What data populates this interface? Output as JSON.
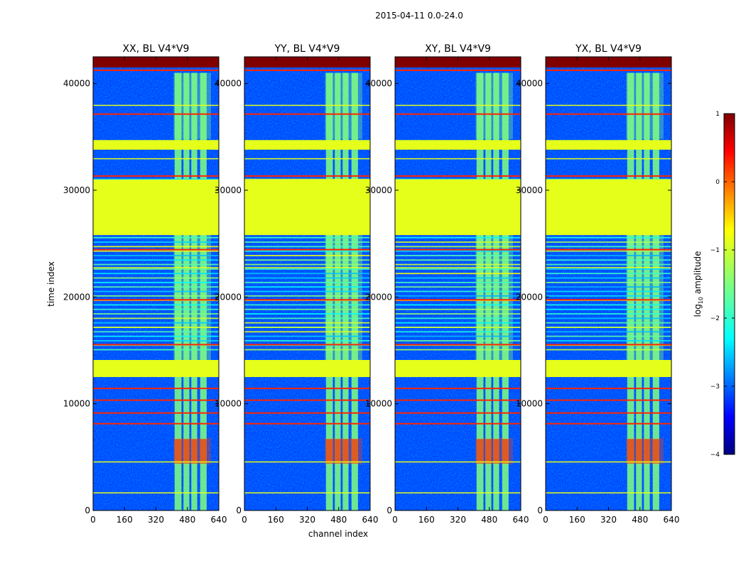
{
  "figure_title": "2015-04-11 0.0-24.0",
  "chart_data": {
    "type": "heatmap",
    "suptitle": "2015-04-11 0.0-24.0",
    "xlabel": "channel index",
    "ylabel": "time index",
    "xlim": [
      0,
      640
    ],
    "ylim": [
      0,
      42500
    ],
    "x_ticks": [
      0,
      160,
      320,
      480,
      640
    ],
    "y_ticks": [
      0,
      10000,
      20000,
      30000,
      40000
    ],
    "panels": [
      {
        "title": "XX, BL V4*V9",
        "polarization": "XX"
      },
      {
        "title": "YY, BL V4*V9",
        "polarization": "YY"
      },
      {
        "title": "XY, BL V4*V9",
        "polarization": "XY"
      },
      {
        "title": "YX, BL V4*V9",
        "polarization": "YX"
      }
    ],
    "signal_band_channels": [
      410,
      600
    ],
    "signal_sub_bands": [
      [
        415,
        450
      ],
      [
        460,
        490
      ],
      [
        500,
        530
      ],
      [
        545,
        578
      ]
    ],
    "flagged_time_bands": [
      {
        "start": 33800,
        "end": 34700,
        "log_amp": -1.0
      },
      {
        "start": 25800,
        "end": 31000,
        "log_amp": -1.0
      },
      {
        "start": 12500,
        "end": 14100,
        "log_amp": -1.0
      },
      {
        "start": 41500,
        "end": 42500,
        "log_amp": 1.0
      }
    ],
    "band_features": [
      {
        "start": 4300,
        "end": 6800,
        "log_amp": 0.1
      },
      {
        "start": 14100,
        "end": 26000,
        "log_amp": -1.4
      },
      {
        "start": 34800,
        "end": 41000,
        "log_amp": -1.5
      }
    ],
    "colorbar": {
      "label": "log10 amplitude",
      "label_main": "log",
      "label_sub": "10",
      "label_rest": " amplitude",
      "min": -4,
      "max": 1,
      "ticks": [
        1,
        0,
        -1,
        -2,
        -3,
        -4
      ],
      "tick_labels": [
        "1",
        "0",
        "−1",
        "−2",
        "−3",
        "−4"
      ],
      "colormap": "jet"
    }
  }
}
